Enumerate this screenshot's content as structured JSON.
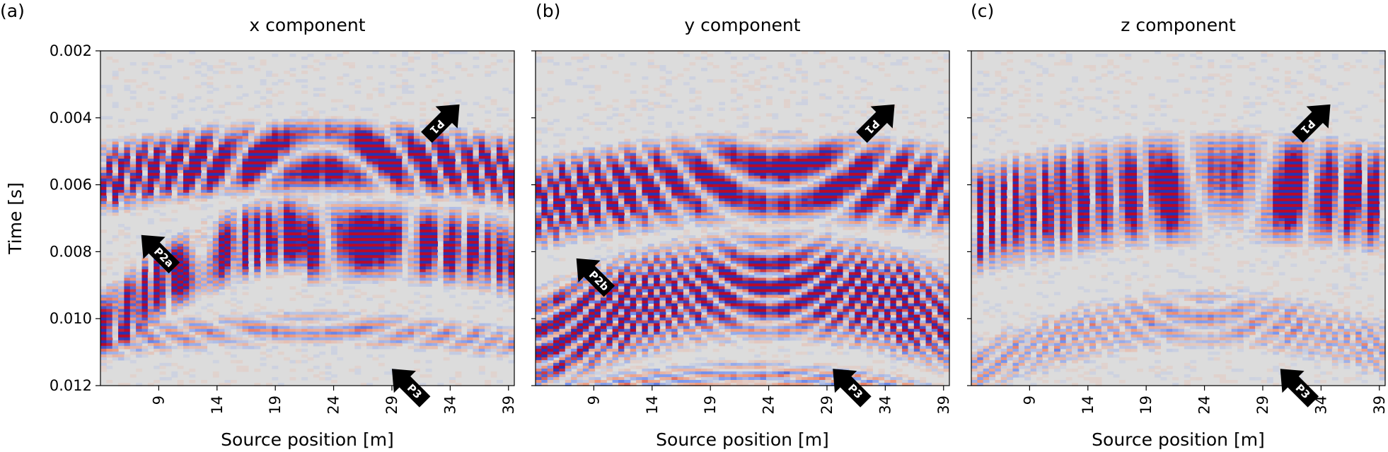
{
  "chart_data": [
    {
      "type": "heatmap",
      "panel_label": "(a)",
      "title": "x component",
      "xlabel": "Source position [m]",
      "ylabel": "Time [s]",
      "xticks": [
        "9",
        "14",
        "19",
        "24",
        "29",
        "34",
        "39"
      ],
      "yticks": [
        "0.002",
        "0.004",
        "0.006",
        "0.008",
        "0.010",
        "0.012"
      ],
      "xlim": [
        4,
        39.5
      ],
      "ylim": [
        0.002,
        0.012
      ],
      "colormap": "coolwarm",
      "background_color": "#dcdcdc",
      "annotations": [
        {
          "label": "P1",
          "x": 34.8,
          "t": 0.0036
        },
        {
          "label": "P2a",
          "x": 7.5,
          "t": 0.0075
        },
        {
          "label": "P3",
          "x": 29,
          "t": 0.0115
        }
      ]
    },
    {
      "type": "heatmap",
      "panel_label": "(b)",
      "title": "y component",
      "xlabel": "Source position [m]",
      "ylabel": "",
      "xticks": [
        "9",
        "14",
        "19",
        "24",
        "29",
        "34",
        "39"
      ],
      "yticks": [],
      "xlim": [
        4,
        39.5
      ],
      "ylim": [
        0.002,
        0.012
      ],
      "colormap": "coolwarm",
      "background_color": "#dcdcdc",
      "annotations": [
        {
          "label": "P1",
          "x": 34.8,
          "t": 0.0036
        },
        {
          "label": "P2b",
          "x": 7.5,
          "t": 0.0082
        },
        {
          "label": "P3",
          "x": 29.5,
          "t": 0.0115
        }
      ]
    },
    {
      "type": "heatmap",
      "panel_label": "(c)",
      "title": "z component",
      "xlabel": "Source position [m]",
      "ylabel": "",
      "xticks": [
        "9",
        "14",
        "19",
        "24",
        "29",
        "34",
        "39"
      ],
      "yticks": [],
      "xlim": [
        4,
        39.5
      ],
      "ylim": [
        0.002,
        0.012
      ],
      "colormap": "coolwarm",
      "background_color": "#dcdcdc",
      "annotations": [
        {
          "label": "P1",
          "x": 34.8,
          "t": 0.0036
        },
        {
          "label": "P3",
          "x": 30.5,
          "t": 0.0115
        }
      ]
    }
  ]
}
